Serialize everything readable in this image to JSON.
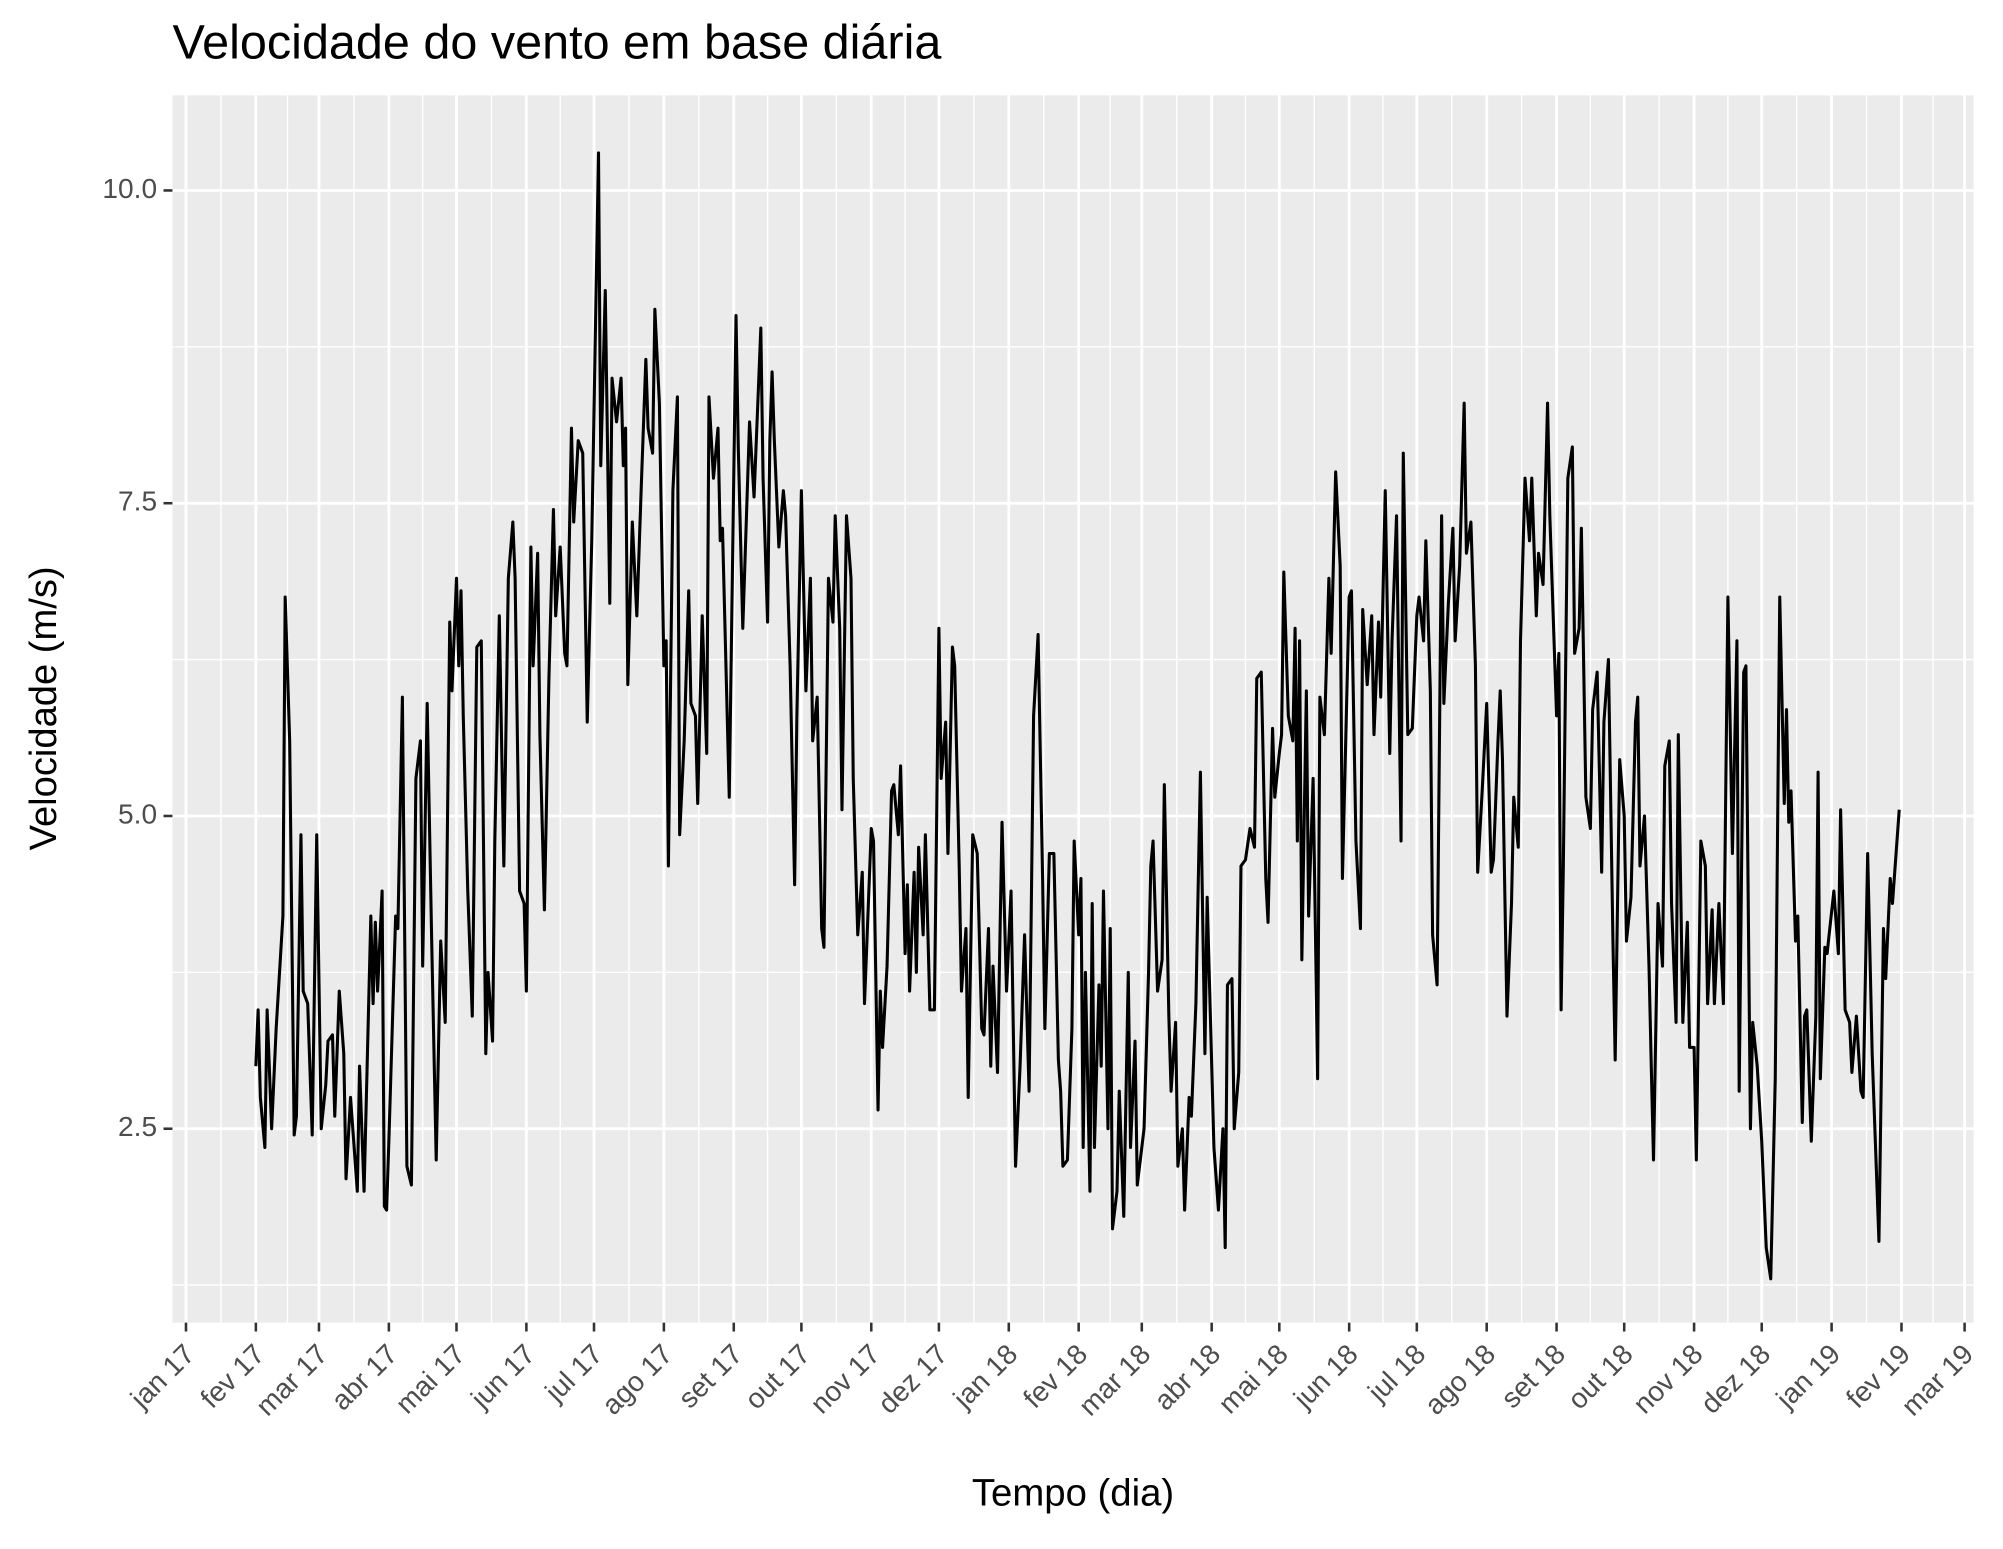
{
  "chart_data": {
    "type": "line",
    "title": "Velocidade do vento em base diária",
    "x_label": "Tempo (dia)",
    "y_label": "Velocidade (m/s)",
    "color": "#000000",
    "grid": true,
    "xlim": [
      "2016-12-26",
      "2019-03-05"
    ],
    "ylim": [
      0.95,
      10.76
    ],
    "yticks": [
      2.5,
      {
        "value": 5,
        "label": "5.0"
      },
      7.5,
      {
        "value": 10,
        "label": "10.0"
      }
    ],
    "xticks": [
      {
        "value": "2017-01-01",
        "label": "jan 17"
      },
      {
        "value": "2017-02-01",
        "label": "fev 17"
      },
      {
        "value": "2017-03-01",
        "label": "mar 17"
      },
      {
        "value": "2017-04-01",
        "label": "abr 17"
      },
      {
        "value": "2017-05-01",
        "label": "mai 17"
      },
      {
        "value": "2017-06-01",
        "label": "jun 17"
      },
      {
        "value": "2017-07-01",
        "label": "jul 17"
      },
      {
        "value": "2017-08-01",
        "label": "ago 17"
      },
      {
        "value": "2017-09-01",
        "label": "set 17"
      },
      {
        "value": "2017-10-01",
        "label": "out 17"
      },
      {
        "value": "2017-11-01",
        "label": "nov 17"
      },
      {
        "value": "2017-12-01",
        "label": "dez 17"
      },
      {
        "value": "2018-01-01",
        "label": "jan 18"
      },
      {
        "value": "2018-02-01",
        "label": "fev 18"
      },
      {
        "value": "2018-03-01",
        "label": "mar 18"
      },
      {
        "value": "2018-04-01",
        "label": "abr 18"
      },
      {
        "value": "2018-05-01",
        "label": "mai 18"
      },
      {
        "value": "2018-06-01",
        "label": "jun 18"
      },
      {
        "value": "2018-07-01",
        "label": "jul 18"
      },
      {
        "value": "2018-08-01",
        "label": "ago 18"
      },
      {
        "value": "2018-09-01",
        "label": "set 18"
      },
      {
        "value": "2018-10-01",
        "label": "out 18"
      },
      {
        "value": "2018-11-01",
        "label": "nov 18"
      },
      {
        "value": "2018-12-01",
        "label": "dez 18"
      },
      {
        "value": "2019-01-01",
        "label": "jan 19"
      },
      {
        "value": "2019-02-01",
        "label": "fev 19"
      },
      {
        "value": "2019-03-01",
        "label": "mar 19"
      }
    ],
    "x": [
      "2017-02-01",
      "2017-02-02",
      "2017-02-03",
      "2017-02-05",
      "2017-02-06",
      "2017-02-08",
      "2017-02-10",
      "2017-02-13",
      "2017-02-14",
      "2017-02-16",
      "2017-02-18",
      "2017-02-19",
      "2017-02-21",
      "2017-02-22",
      "2017-02-24",
      "2017-02-26",
      "2017-02-28",
      "2017-03-02",
      "2017-03-04",
      "2017-03-05",
      "2017-03-07",
      "2017-03-08",
      "2017-03-10",
      "2017-03-12",
      "2017-03-13",
      "2017-03-15",
      "2017-03-18",
      "2017-03-19",
      "2017-03-21",
      "2017-03-24",
      "2017-03-25",
      "2017-03-26",
      "2017-03-27",
      "2017-03-29",
      "2017-03-30",
      "2017-03-31",
      "2017-04-01",
      "2017-04-04",
      "2017-04-05",
      "2017-04-07",
      "2017-04-09",
      "2017-04-11",
      "2017-04-13",
      "2017-04-15",
      "2017-04-16",
      "2017-04-18",
      "2017-04-20",
      "2017-04-22",
      "2017-04-24",
      "2017-04-26",
      "2017-04-28",
      "2017-04-29",
      "2017-05-01",
      "2017-05-02",
      "2017-05-03",
      "2017-05-04",
      "2017-05-06",
      "2017-05-08",
      "2017-05-10",
      "2017-05-12",
      "2017-05-14",
      "2017-05-15",
      "2017-05-17",
      "2017-05-18",
      "2017-05-20",
      "2017-05-22",
      "2017-05-24",
      "2017-05-26",
      "2017-05-27",
      "2017-05-29",
      "2017-05-31",
      "2017-06-01",
      "2017-06-03",
      "2017-06-04",
      "2017-06-06",
      "2017-06-07",
      "2017-06-09",
      "2017-06-11",
      "2017-06-13",
      "2017-06-14",
      "2017-06-16",
      "2017-06-18",
      "2017-06-19",
      "2017-06-21",
      "2017-06-22",
      "2017-06-24",
      "2017-06-26",
      "2017-06-28",
      "2017-06-30",
      "2017-07-03",
      "2017-07-04",
      "2017-07-06",
      "2017-07-08",
      "2017-07-09",
      "2017-07-11",
      "2017-07-13",
      "2017-07-14",
      "2017-07-15",
      "2017-07-16",
      "2017-07-18",
      "2017-07-20",
      "2017-07-22",
      "2017-07-24",
      "2017-07-25",
      "2017-07-27",
      "2017-07-28",
      "2017-07-30",
      "2017-08-01",
      "2017-08-02",
      "2017-08-03",
      "2017-08-05",
      "2017-08-07",
      "2017-08-08",
      "2017-08-10",
      "2017-08-12",
      "2017-08-13",
      "2017-08-15",
      "2017-08-16",
      "2017-08-18",
      "2017-08-20",
      "2017-08-21",
      "2017-08-23",
      "2017-08-25",
      "2017-08-26",
      "2017-08-27",
      "2017-08-30",
      "2017-09-02",
      "2017-09-03",
      "2017-09-05",
      "2017-09-07",
      "2017-09-08",
      "2017-09-10",
      "2017-09-13",
      "2017-09-14",
      "2017-09-16",
      "2017-09-17",
      "2017-09-18",
      "2017-09-19",
      "2017-09-21",
      "2017-09-23",
      "2017-09-24",
      "2017-09-26",
      "2017-09-28",
      "2017-09-29",
      "2017-10-01",
      "2017-10-03",
      "2017-10-05",
      "2017-10-06",
      "2017-10-08",
      "2017-10-10",
      "2017-10-11",
      "2017-10-13",
      "2017-10-15",
      "2017-10-16",
      "2017-10-18",
      "2017-10-19",
      "2017-10-21",
      "2017-10-23",
      "2017-10-24",
      "2017-10-26",
      "2017-10-28",
      "2017-10-29",
      "2017-11-01",
      "2017-11-02",
      "2017-11-04",
      "2017-11-05",
      "2017-11-06",
      "2017-11-08",
      "2017-11-10",
      "2017-11-11",
      "2017-11-13",
      "2017-11-14",
      "2017-11-16",
      "2017-11-17",
      "2017-11-18",
      "2017-11-20",
      "2017-11-21",
      "2017-11-22",
      "2017-11-24",
      "2017-11-25",
      "2017-11-27",
      "2017-11-29",
      "2017-12-01",
      "2017-12-02",
      "2017-12-04",
      "2017-12-05",
      "2017-12-07",
      "2017-12-08",
      "2017-12-10",
      "2017-12-11",
      "2017-12-13",
      "2017-12-14",
      "2017-12-16",
      "2017-12-18",
      "2017-12-20",
      "2017-12-21",
      "2017-12-23",
      "2017-12-24",
      "2017-12-25",
      "2017-12-27",
      "2017-12-29",
      "2017-12-31",
      "2018-01-02",
      "2018-01-04",
      "2018-01-06",
      "2018-01-08",
      "2018-01-10",
      "2018-01-12",
      "2018-01-14",
      "2018-01-16",
      "2018-01-17",
      "2018-01-19",
      "2018-01-21",
      "2018-01-23",
      "2018-01-24",
      "2018-01-25",
      "2018-01-27",
      "2018-01-29",
      "2018-01-30",
      "2018-02-01",
      "2018-02-02",
      "2018-02-03",
      "2018-02-04",
      "2018-02-06",
      "2018-02-07",
      "2018-02-08",
      "2018-02-10",
      "2018-02-11",
      "2018-02-12",
      "2018-02-14",
      "2018-02-15",
      "2018-02-16",
      "2018-02-18",
      "2018-02-19",
      "2018-02-21",
      "2018-02-23",
      "2018-02-24",
      "2018-02-26",
      "2018-02-27",
      "2018-03-02",
      "2018-03-04",
      "2018-03-05",
      "2018-03-06",
      "2018-03-08",
      "2018-03-10",
      "2018-03-11",
      "2018-03-13",
      "2018-03-14",
      "2018-03-16",
      "2018-03-17",
      "2018-03-19",
      "2018-03-20",
      "2018-03-22",
      "2018-03-23",
      "2018-03-25",
      "2018-03-27",
      "2018-03-28",
      "2018-03-29",
      "2018-03-30",
      "2018-04-02",
      "2018-04-04",
      "2018-04-06",
      "2018-04-07",
      "2018-04-08",
      "2018-04-10",
      "2018-04-11",
      "2018-04-13",
      "2018-04-14",
      "2018-04-16",
      "2018-04-18",
      "2018-04-20",
      "2018-04-21",
      "2018-04-23",
      "2018-04-25",
      "2018-04-26",
      "2018-04-28",
      "2018-04-29",
      "2018-05-01",
      "2018-05-02",
      "2018-05-03",
      "2018-05-05",
      "2018-05-07",
      "2018-05-08",
      "2018-05-09",
      "2018-05-10",
      "2018-05-11",
      "2018-05-13",
      "2018-05-14",
      "2018-05-16",
      "2018-05-18",
      "2018-05-19",
      "2018-05-21",
      "2018-05-23",
      "2018-05-24",
      "2018-05-26",
      "2018-05-28",
      "2018-05-29",
      "2018-06-01",
      "2018-06-02",
      "2018-06-04",
      "2018-06-06",
      "2018-06-07",
      "2018-06-09",
      "2018-06-11",
      "2018-06-12",
      "2018-06-14",
      "2018-06-15",
      "2018-06-17",
      "2018-06-19",
      "2018-06-20",
      "2018-06-22",
      "2018-06-24",
      "2018-06-25",
      "2018-06-27",
      "2018-06-29",
      "2018-07-01",
      "2018-07-02",
      "2018-07-04",
      "2018-07-05",
      "2018-07-07",
      "2018-07-08",
      "2018-07-10",
      "2018-07-12",
      "2018-07-13",
      "2018-07-15",
      "2018-07-17",
      "2018-07-18",
      "2018-07-20",
      "2018-07-22",
      "2018-07-23",
      "2018-07-25",
      "2018-07-27",
      "2018-07-28",
      "2018-07-30",
      "2018-08-01",
      "2018-08-03",
      "2018-08-04",
      "2018-08-06",
      "2018-08-07",
      "2018-08-08",
      "2018-08-10",
      "2018-08-12",
      "2018-08-13",
      "2018-08-15",
      "2018-08-16",
      "2018-08-18",
      "2018-08-20",
      "2018-08-21",
      "2018-08-23",
      "2018-08-24",
      "2018-08-26",
      "2018-08-28",
      "2018-08-29",
      "2018-09-01",
      "2018-09-02",
      "2018-09-03",
      "2018-09-04",
      "2018-09-06",
      "2018-09-08",
      "2018-09-09",
      "2018-09-11",
      "2018-09-12",
      "2018-09-14",
      "2018-09-16",
      "2018-09-17",
      "2018-09-19",
      "2018-09-21",
      "2018-09-22",
      "2018-09-24",
      "2018-09-26",
      "2018-09-27",
      "2018-09-29",
      "2018-10-01",
      "2018-10-02",
      "2018-10-04",
      "2018-10-06",
      "2018-10-07",
      "2018-10-08",
      "2018-10-10",
      "2018-10-12",
      "2018-10-13",
      "2018-10-14",
      "2018-10-16",
      "2018-10-18",
      "2018-10-19",
      "2018-10-21",
      "2018-10-22",
      "2018-10-24",
      "2018-10-25",
      "2018-10-27",
      "2018-10-29",
      "2018-10-30",
      "2018-11-01",
      "2018-11-02",
      "2018-11-04",
      "2018-11-06",
      "2018-11-07",
      "2018-11-09",
      "2018-11-10",
      "2018-11-12",
      "2018-11-14",
      "2018-11-16",
      "2018-11-18",
      "2018-11-20",
      "2018-11-21",
      "2018-11-23",
      "2018-11-24",
      "2018-11-26",
      "2018-11-27",
      "2018-11-29",
      "2018-12-01",
      "2018-12-03",
      "2018-12-05",
      "2018-12-07",
      "2018-12-09",
      "2018-12-11",
      "2018-12-12",
      "2018-12-13",
      "2018-12-14",
      "2018-12-16",
      "2018-12-17",
      "2018-12-19",
      "2018-12-20",
      "2018-12-21",
      "2018-12-23",
      "2018-12-25",
      "2018-12-26",
      "2018-12-27",
      "2018-12-29",
      "2018-12-30",
      "2019-01-02",
      "2019-01-04",
      "2019-01-05",
      "2019-01-07",
      "2019-01-09",
      "2019-01-10",
      "2019-01-12",
      "2019-01-14",
      "2019-01-15",
      "2019-01-17",
      "2019-01-19",
      "2019-01-22",
      "2019-01-24",
      "2019-01-25",
      "2019-01-27",
      "2019-01-28",
      "2019-01-31"
    ],
    "values": [
      3.0,
      3.45,
      2.75,
      2.35,
      3.45,
      2.5,
      3.3,
      4.2,
      6.75,
      5.6,
      2.45,
      2.6,
      4.85,
      3.6,
      3.5,
      2.45,
      4.85,
      2.5,
      2.85,
      3.2,
      3.25,
      2.6,
      3.6,
      3.1,
      2.1,
      2.75,
      2.0,
      3.0,
      2.0,
      4.2,
      3.5,
      4.15,
      3.6,
      4.4,
      1.88,
      1.85,
      2.4,
      4.2,
      4.1,
      5.95,
      2.2,
      2.05,
      5.3,
      5.6,
      3.8,
      5.9,
      4.0,
      2.25,
      4.0,
      3.35,
      6.55,
      6.0,
      6.9,
      6.2,
      6.8,
      5.8,
      4.4,
      3.4,
      6.35,
      6.4,
      3.1,
      3.75,
      3.2,
      4.8,
      6.6,
      4.6,
      6.9,
      7.35,
      6.9,
      4.4,
      4.3,
      3.6,
      7.15,
      6.2,
      7.1,
      5.65,
      4.25,
      6.1,
      7.45,
      6.6,
      7.15,
      6.3,
      6.2,
      8.1,
      7.35,
      8.0,
      7.9,
      5.75,
      7.2,
      10.3,
      7.8,
      9.2,
      6.7,
      8.5,
      8.15,
      8.5,
      7.8,
      8.1,
      6.05,
      7.35,
      6.6,
      7.65,
      8.65,
      8.1,
      7.9,
      9.05,
      8.3,
      6.2,
      6.4,
      4.6,
      7.6,
      8.35,
      4.85,
      5.6,
      6.8,
      5.9,
      5.8,
      5.1,
      6.6,
      5.5,
      8.35,
      7.7,
      8.1,
      7.2,
      7.3,
      5.15,
      9.0,
      7.95,
      6.5,
      7.6,
      8.15,
      7.55,
      8.9,
      7.7,
      6.55,
      8.0,
      8.55,
      8.0,
      7.15,
      7.6,
      7.4,
      6.2,
      4.45,
      5.8,
      7.6,
      6.0,
      6.9,
      5.6,
      5.95,
      4.1,
      3.95,
      6.9,
      6.55,
      7.4,
      6.5,
      5.05,
      7.4,
      6.9,
      5.3,
      4.05,
      4.55,
      3.5,
      4.9,
      4.8,
      2.65,
      3.6,
      3.15,
      3.8,
      5.2,
      5.25,
      4.85,
      5.4,
      3.9,
      4.45,
      3.6,
      4.55,
      3.75,
      4.75,
      4.05,
      4.85,
      3.45,
      3.45,
      6.5,
      5.3,
      5.75,
      4.7,
      6.35,
      6.2,
      4.6,
      3.6,
      4.1,
      2.75,
      4.85,
      4.7,
      3.3,
      3.25,
      4.1,
      3.0,
      3.8,
      2.95,
      4.95,
      3.6,
      4.4,
      2.2,
      3.0,
      4.05,
      2.8,
      5.8,
      6.45,
      4.5,
      3.3,
      4.7,
      4.7,
      3.05,
      2.8,
      2.2,
      2.25,
      3.3,
      4.8,
      4.05,
      4.5,
      2.35,
      3.75,
      2.0,
      4.3,
      2.35,
      3.65,
      3.0,
      4.4,
      2.5,
      4.1,
      1.7,
      2.0,
      2.8,
      1.8,
      3.75,
      2.35,
      3.2,
      2.05,
      2.5,
      3.75,
      4.6,
      4.8,
      3.6,
      3.85,
      5.25,
      3.4,
      2.8,
      3.35,
      2.2,
      2.5,
      1.85,
      2.75,
      2.6,
      3.5,
      5.35,
      4.2,
      3.1,
      4.35,
      2.35,
      1.85,
      2.5,
      1.55,
      3.65,
      3.7,
      2.5,
      2.95,
      4.6,
      4.65,
      4.9,
      4.75,
      6.1,
      6.15,
      4.5,
      4.15,
      5.7,
      5.15,
      5.5,
      5.65,
      6.95,
      5.8,
      5.6,
      6.5,
      4.8,
      6.4,
      3.85,
      6.0,
      4.2,
      5.3,
      2.9,
      5.95,
      5.65,
      6.9,
      6.3,
      7.75,
      7.0,
      4.5,
      6.75,
      6.8,
      4.8,
      4.1,
      6.65,
      6.05,
      6.6,
      5.65,
      6.55,
      5.95,
      7.6,
      5.5,
      6.4,
      7.4,
      4.8,
      7.9,
      5.65,
      5.7,
      6.6,
      6.75,
      6.4,
      7.2,
      6.0,
      4.05,
      3.65,
      7.4,
      5.9,
      6.7,
      7.3,
      6.4,
      7.0,
      8.3,
      7.1,
      7.35,
      6.2,
      4.55,
      5.2,
      5.9,
      4.55,
      4.65,
      5.6,
      6.0,
      5.45,
      3.4,
      4.3,
      5.15,
      4.75,
      6.4,
      7.7,
      7.2,
      7.7,
      6.6,
      7.1,
      6.85,
      8.3,
      7.4,
      5.8,
      6.3,
      3.45,
      4.6,
      7.7,
      7.95,
      6.3,
      6.5,
      7.3,
      5.15,
      4.9,
      5.85,
      6.15,
      4.55,
      5.75,
      6.25,
      4.0,
      3.05,
      5.45,
      5.0,
      4.0,
      4.35,
      5.75,
      5.95,
      4.6,
      5.0,
      3.8,
      3.0,
      2.25,
      4.3,
      3.8,
      5.4,
      5.6,
      4.3,
      3.35,
      5.65,
      3.35,
      4.15,
      3.15,
      3.15,
      2.25,
      4.8,
      4.6,
      3.5,
      4.25,
      3.5,
      4.3,
      3.5,
      6.75,
      4.7,
      6.4,
      2.8,
      6.15,
      6.2,
      2.5,
      3.35,
      3.0,
      2.4,
      1.55,
      1.3,
      2.9,
      6.75,
      5.1,
      5.85,
      4.95,
      5.2,
      4.0,
      4.2,
      2.55,
      3.4,
      3.45,
      2.4,
      3.4,
      5.35,
      2.9,
      3.95,
      3.9,
      4.4,
      3.9,
      5.05,
      3.45,
      3.35,
      2.95,
      3.4,
      2.8,
      2.75,
      4.7,
      3.1,
      1.6,
      4.1,
      3.7,
      4.5,
      4.3,
      5.05
    ]
  }
}
